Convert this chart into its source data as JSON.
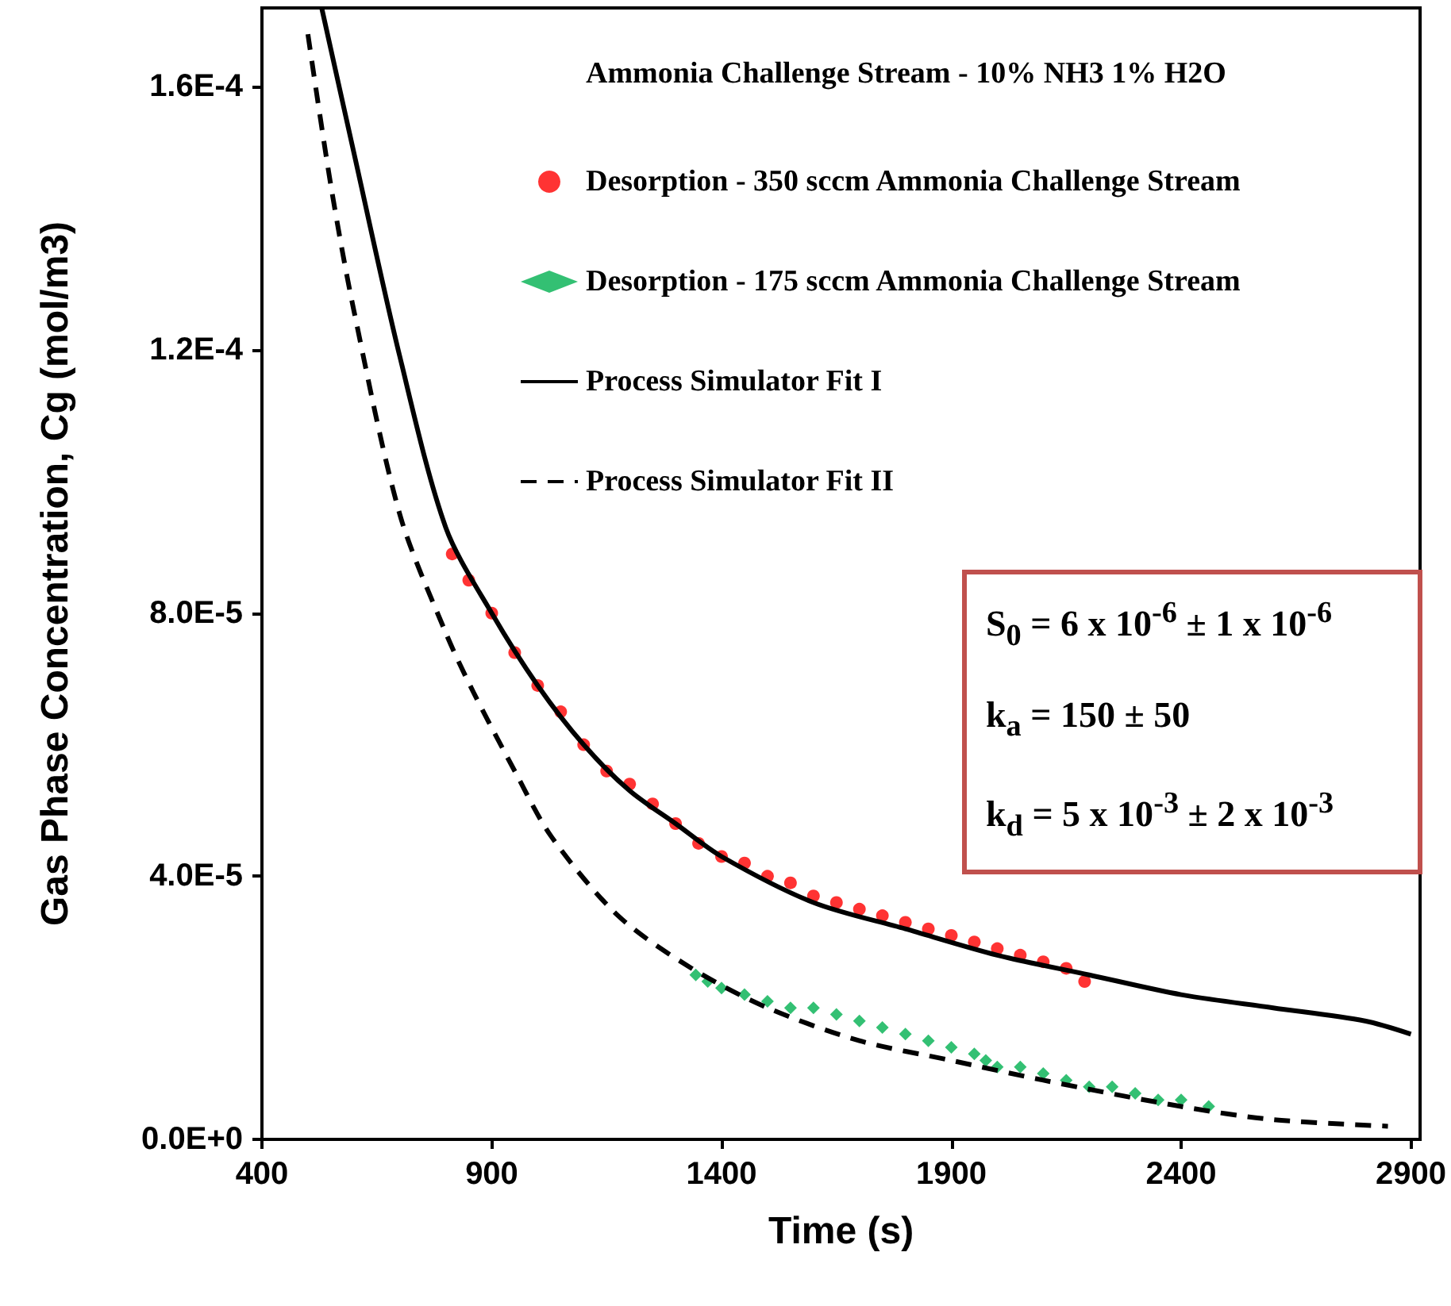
{
  "chart_data": {
    "type": "scatter",
    "xlabel": "Time (s)",
    "ylabel": "Gas Phase Concentration, Cg (mol/m3)",
    "legend_title": "Ammonia Challenge Stream - 10% NH3 1% H2O",
    "legend": "top right",
    "grid": false,
    "xlim": [
      400,
      2920
    ],
    "xticks": [
      400,
      900,
      1400,
      1900,
      2400,
      2900
    ],
    "ylim": [
      0,
      0.000172
    ],
    "yticks": [
      {
        "value": 0,
        "label": "0.0E+0"
      },
      {
        "value": 4e-05,
        "label": "4.0E-5"
      },
      {
        "value": 8e-05,
        "label": "8.0E-5"
      },
      {
        "value": 0.00012,
        "label": "1.2E-4"
      },
      {
        "value": 0.00016,
        "label": "1.6E-4"
      }
    ],
    "annotations": [
      "S$_{0}$ = 6 x 10$^{-6}$ ± 1 x 10$^{-6}$",
      "k$_{a}$ = 150 ± 50",
      "k$_{d}$ = 5 x 10$^{-3}$ ± 2 x 10$^{-3}$"
    ],
    "series": [
      {
        "name": "Desorption - 350 sccm Ammonia Challenge Stream",
        "marker": "circle",
        "color": "#ff0000",
        "x": [
          814,
          850,
          900,
          950,
          1000,
          1050,
          1100,
          1150,
          1200,
          1250,
          1300,
          1350,
          1400,
          1450,
          1500,
          1550,
          1600,
          1650,
          1700,
          1750,
          1800,
          1850,
          1900,
          1950,
          2000,
          2050,
          2100,
          2150,
          2190
        ],
        "values": [
          8.9e-05,
          8.5e-05,
          8e-05,
          7.4e-05,
          6.9e-05,
          6.5e-05,
          6e-05,
          5.6e-05,
          5.4e-05,
          5.1e-05,
          4.8e-05,
          4.5e-05,
          4.3e-05,
          4.2e-05,
          4e-05,
          3.9e-05,
          3.7e-05,
          3.6e-05,
          3.5e-05,
          3.4e-05,
          3.3e-05,
          3.2e-05,
          3.1e-05,
          3e-05,
          2.9e-05,
          2.8e-05,
          2.7e-05,
          2.6e-05,
          2.4e-05
        ]
      },
      {
        "name": "Desorption - 175 sccm Ammonia Challenge Stream",
        "marker": "diamond",
        "color": "#00b050",
        "x": [
          1344,
          1370,
          1400,
          1450,
          1500,
          1550,
          1600,
          1650,
          1700,
          1750,
          1800,
          1850,
          1900,
          1950,
          1975,
          2000,
          2050,
          2100,
          2150,
          2200,
          2250,
          2300,
          2350,
          2400,
          2460
        ],
        "values": [
          2.5e-05,
          2.4e-05,
          2.3e-05,
          2.2e-05,
          2.1e-05,
          2e-05,
          2e-05,
          1.9e-05,
          1.8e-05,
          1.7e-05,
          1.6e-05,
          1.5e-05,
          1.4e-05,
          1.3e-05,
          1.2e-05,
          1.1e-05,
          1.1e-05,
          1e-05,
          9e-06,
          8e-06,
          8e-06,
          7e-06,
          6e-06,
          6e-06,
          5e-06
        ]
      },
      {
        "name": "Process Simulator Fit I",
        "type": "line",
        "marker": "none",
        "line_style": "solid",
        "color": "#000000",
        "x": [
          530,
          600,
          700,
          800,
          900,
          1000,
          1100,
          1200,
          1300,
          1400,
          1600,
          1800,
          2000,
          2200,
          2400,
          2600,
          2800,
          2900
        ],
        "values": [
          0.000172,
          0.00015,
          0.000119,
          9.3e-05,
          8e-05,
          6.9e-05,
          6e-05,
          5.3e-05,
          4.8e-05,
          4.3e-05,
          3.6e-05,
          3.2e-05,
          2.8e-05,
          2.5e-05,
          2.2e-05,
          2e-05,
          1.8e-05,
          1.6e-05
        ]
      },
      {
        "name": "Process Simulator Fit II",
        "type": "line",
        "marker": "none",
        "line_style": "dashed",
        "color": "#000000",
        "x": [
          500,
          550,
          600,
          700,
          800,
          860,
          950,
          1030,
          1175,
          1335,
          1500,
          1700,
          1900,
          2100,
          2400,
          2600,
          2850
        ],
        "values": [
          0.000168,
          0.000145,
          0.000126,
          9.5e-05,
          7.7e-05,
          6.8e-05,
          5.6e-05,
          4.6e-05,
          3.4e-05,
          2.6e-05,
          2e-05,
          1.5e-05,
          1.2e-05,
          9e-06,
          5e-06,
          3e-06,
          2e-06
        ]
      }
    ]
  }
}
